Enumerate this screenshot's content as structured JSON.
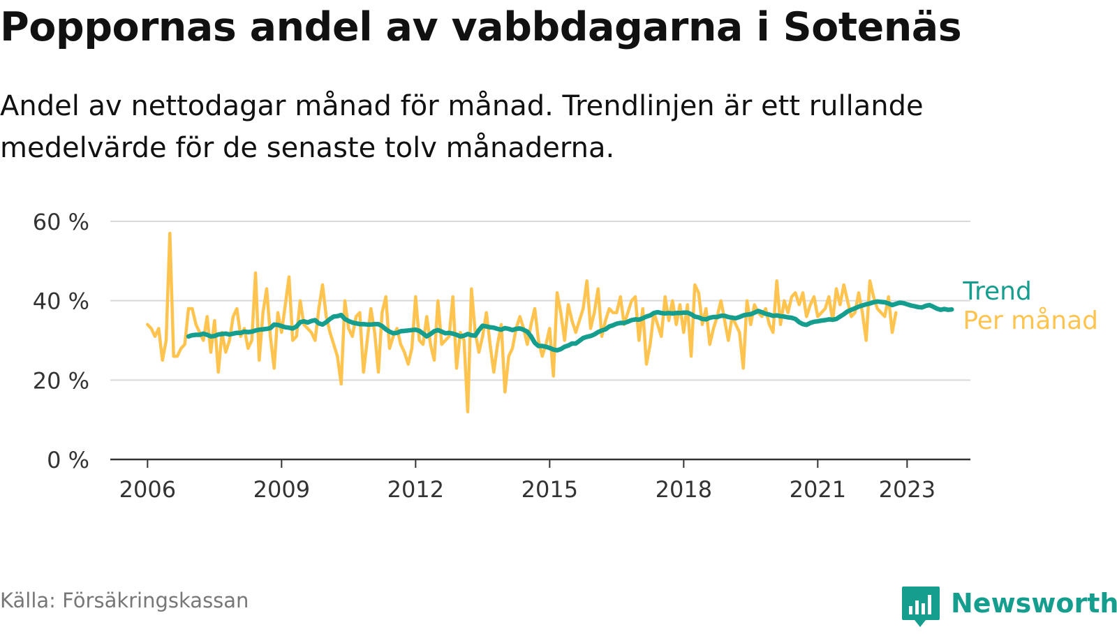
{
  "header": {
    "title": "Poppornas andel av vabbdagarna i Sotenäs",
    "subtitle": "Andel av nettodagar månad för månad. Trendlinjen är ett rullande medelvärde för de senaste tolv månaderna."
  },
  "footer": {
    "source": "Källa: Försäkringskassan",
    "brand": "Newsworthy",
    "brand_icon": "newsworthy-chart-bubble-icon"
  },
  "colors": {
    "monthly": "#fec44f",
    "trend": "#159d8e",
    "grid": "#d9d9d9",
    "axis": "#333333",
    "brand": "#159d8e"
  },
  "chart_data": {
    "type": "line",
    "title": "",
    "xlabel": "",
    "ylabel": "",
    "x_ticks": [
      "2006",
      "2009",
      "2012",
      "2015",
      "2018",
      "2021",
      "2023"
    ],
    "y_ticks": [
      "0 %",
      "20 %",
      "40 %",
      "60 %"
    ],
    "ylim": [
      0,
      60
    ],
    "xlim": [
      "2005-03",
      "2024-06"
    ],
    "grid": true,
    "legend": "labels at line ends, right",
    "series": [
      {
        "name": "Per månad",
        "color": "#fec44f",
        "start": "2006-01",
        "frequency": "monthly",
        "values": [
          34,
          33,
          31,
          33,
          25,
          30,
          57,
          26,
          26,
          28,
          29,
          38,
          38,
          34,
          32,
          30,
          36,
          27,
          35,
          22,
          32,
          27,
          30,
          36,
          38,
          31,
          33,
          28,
          30,
          47,
          25,
          37,
          43,
          31,
          23,
          37,
          32,
          39,
          46,
          30,
          31,
          40,
          34,
          33,
          32,
          30,
          38,
          44,
          36,
          32,
          29,
          26,
          19,
          40,
          33,
          31,
          36,
          37,
          22,
          30,
          38,
          32,
          22,
          37,
          41,
          28,
          31,
          33,
          29,
          27,
          24,
          28,
          41,
          30,
          29,
          36,
          29,
          25,
          40,
          29,
          30,
          31,
          41,
          23,
          32,
          30,
          12,
          43,
          32,
          27,
          31,
          37,
          29,
          22,
          29,
          34,
          17,
          26,
          28,
          33,
          36,
          33,
          29,
          34,
          38,
          30,
          26,
          29,
          33,
          21,
          42,
          37,
          30,
          39,
          35,
          32,
          35,
          38,
          45,
          33,
          37,
          43,
          31,
          35,
          38,
          37,
          37,
          41,
          34,
          37,
          40,
          41,
          30,
          38,
          24,
          29,
          37,
          34,
          31,
          41,
          35,
          40,
          34,
          39,
          32,
          39,
          26,
          44,
          42,
          34,
          38,
          29,
          33,
          36,
          40,
          35,
          30,
          36,
          34,
          32,
          23,
          40,
          34,
          39,
          37,
          36,
          38,
          34,
          32,
          45,
          34,
          40,
          37,
          41,
          42,
          39,
          42,
          36,
          39,
          41,
          36,
          37,
          38,
          41,
          35,
          43,
          39,
          44,
          40,
          36,
          37,
          42,
          37,
          30,
          45,
          41,
          38,
          37,
          36,
          41,
          32,
          37
        ]
      },
      {
        "name": "Trend",
        "color": "#159d8e",
        "start": "2006-12",
        "frequency": "monthly",
        "values": [
          31.0,
          31.3,
          31.4,
          31.4,
          31.7,
          31.4,
          31.0,
          31.1,
          31.5,
          31.6,
          31.7,
          31.5,
          31.7,
          31.9,
          31.9,
          32.2,
          32.1,
          32.2,
          32.5,
          32.7,
          32.8,
          32.9,
          33.1,
          34.0,
          33.9,
          33.6,
          33.3,
          33.2,
          33.0,
          33.5,
          34.6,
          34.8,
          34.5,
          34.9,
          35.1,
          34.3,
          34.0,
          34.6,
          35.4,
          36.0,
          36.1,
          36.4,
          35.4,
          34.9,
          34.5,
          34.3,
          34.1,
          34.1,
          34.0,
          34.0,
          34.1,
          34.1,
          33.6,
          32.8,
          32.2,
          31.8,
          31.9,
          32.3,
          32.4,
          32.5,
          32.6,
          32.7,
          32.4,
          31.7,
          31.0,
          31.6,
          32.3,
          32.6,
          32.2,
          31.8,
          31.9,
          31.7,
          31.4,
          31.0,
          31.2,
          31.6,
          31.3,
          31.2,
          32.6,
          33.7,
          33.5,
          33.3,
          33.2,
          32.9,
          32.7,
          33.1,
          32.9,
          32.6,
          32.9,
          33.0,
          32.7,
          32.2,
          31.0,
          29.4,
          28.6,
          28.6,
          28.4,
          28.1,
          27.7,
          27.5,
          27.8,
          28.4,
          28.7,
          29.2,
          29.2,
          29.9,
          30.6,
          30.9,
          31.1,
          31.5,
          32.1,
          32.5,
          32.8,
          33.5,
          33.8,
          34.2,
          34.4,
          34.4,
          34.7,
          35.1,
          35.3,
          35.2,
          35.6,
          36.0,
          36.3,
          36.9,
          37.1,
          36.9,
          36.8,
          36.9,
          36.8,
          36.9,
          36.9,
          37.0,
          37.0,
          36.6,
          36.0,
          35.8,
          35.4,
          35.3,
          35.7,
          35.9,
          35.9,
          36.2,
          36.2,
          35.9,
          35.7,
          35.6,
          35.9,
          36.3,
          36.5,
          36.6,
          37.0,
          37.4,
          37.1,
          36.7,
          36.5,
          36.2,
          36.3,
          36.1,
          36.0,
          35.8,
          35.7,
          35.4,
          34.6,
          34.1,
          33.9,
          34.4,
          34.7,
          34.8,
          35.0,
          35.1,
          35.3,
          35.2,
          35.4,
          36.0,
          36.6,
          37.3,
          37.7,
          38.1,
          38.5,
          38.8,
          39.1,
          39.3,
          39.6,
          39.8,
          39.7,
          39.6,
          39.3,
          38.9,
          39.2,
          39.5,
          39.4,
          39.1,
          38.8,
          38.6,
          38.4,
          38.3,
          38.7,
          38.9,
          38.5,
          38.0,
          37.7,
          37.9,
          37.7,
          37.8
        ]
      }
    ]
  }
}
